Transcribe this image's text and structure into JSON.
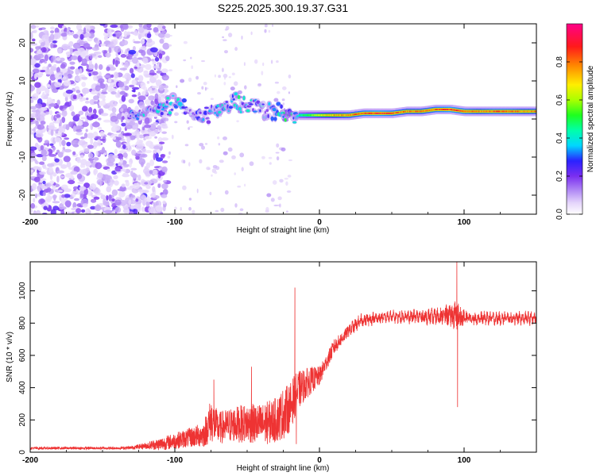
{
  "title": "S225.2025.300.19.37.G31",
  "chart_data": [
    {
      "type": "heatmap",
      "title": "S225.2025.300.19.37.G31",
      "xlabel": "Height of straight line (km)",
      "ylabel": "Frequency (Hz)",
      "xlim": [
        -200,
        150
      ],
      "ylim": [
        -25,
        25
      ],
      "xticks": [
        "-200",
        "-100",
        "0",
        "100"
      ],
      "xtick_values": [
        -200,
        -100,
        0,
        100
      ],
      "yticks": [
        "-20",
        "-10",
        "0",
        "10",
        "20"
      ],
      "ytick_values": [
        -20,
        -10,
        0,
        10,
        20
      ],
      "colorbar": {
        "label": "Normalized spectral amplitude",
        "range": [
          0.0,
          1.0
        ],
        "ticks": [
          "0.0",
          "0.2",
          "0.4",
          "0.6",
          "0.8"
        ],
        "tick_values": [
          0.0,
          0.2,
          0.4,
          0.6,
          0.8
        ]
      },
      "ridge": {
        "x": [
          -130,
          -120,
          -110,
          -100,
          -90,
          -80,
          -70,
          -60,
          -50,
          -40,
          -30,
          -20,
          -10,
          0,
          10,
          20,
          30,
          40,
          50,
          60,
          70,
          80,
          90,
          100,
          110,
          120,
          130,
          140,
          150
        ],
        "frequency": [
          1,
          2,
          3,
          4,
          2,
          1,
          2,
          5,
          4,
          3,
          2,
          1,
          1,
          1,
          1,
          1,
          1.5,
          1.5,
          1.5,
          2,
          2,
          2.5,
          2.5,
          2,
          2,
          2,
          2,
          2,
          2
        ],
        "amplitude": [
          0.3,
          0.35,
          0.35,
          0.45,
          0.3,
          0.3,
          0.35,
          0.4,
          0.4,
          0.35,
          0.4,
          0.45,
          0.55,
          0.7,
          0.8,
          0.85,
          0.9,
          0.95,
          0.9,
          0.85,
          0.85,
          0.9,
          0.95,
          0.9,
          0.85,
          0.9,
          0.9,
          0.85,
          0.85
        ]
      }
    },
    {
      "type": "line",
      "xlabel": "Height of straight line (km)",
      "ylabel": "SNR (10 * v/v)",
      "xlim": [
        -200,
        150
      ],
      "ylim": [
        0,
        1180
      ],
      "xticks": [
        "-200",
        "-100",
        "0",
        "100"
      ],
      "xtick_values": [
        -200,
        -100,
        0,
        100
      ],
      "yticks": [
        "0",
        "200",
        "400",
        "600",
        "800",
        "1000"
      ],
      "ytick_values": [
        0,
        200,
        400,
        600,
        800,
        1000
      ],
      "series": [
        {
          "name": "SNR",
          "color": "#ee3333",
          "x": [
            -200,
            -180,
            -160,
            -140,
            -130,
            -120,
            -110,
            -100,
            -90,
            -80,
            -75,
            -70,
            -60,
            -50,
            -40,
            -30,
            -25,
            -20,
            -18,
            -15,
            -10,
            -5,
            0,
            5,
            10,
            15,
            20,
            25,
            30,
            40,
            50,
            60,
            70,
            80,
            90,
            95,
            100,
            110,
            120,
            130,
            140,
            150
          ],
          "mean": [
            25,
            25,
            25,
            25,
            28,
            40,
            50,
            70,
            90,
            110,
            200,
            150,
            170,
            180,
            170,
            200,
            240,
            280,
            330,
            380,
            420,
            450,
            470,
            560,
            650,
            700,
            750,
            790,
            820,
            830,
            840,
            840,
            840,
            840,
            850,
            840,
            830,
            830,
            830,
            830,
            830,
            830
          ],
          "noise": [
            8,
            8,
            8,
            8,
            10,
            20,
            40,
            50,
            60,
            80,
            140,
            100,
            110,
            120,
            130,
            140,
            160,
            150,
            140,
            120,
            100,
            80,
            60,
            50,
            50,
            40,
            35,
            30,
            30,
            30,
            25,
            30,
            35,
            40,
            60,
            90,
            40,
            30,
            30,
            30,
            30,
            30
          ],
          "spikes": [
            {
              "x": -73,
              "value": 450
            },
            {
              "x": -47,
              "value": 530
            },
            {
              "x": -17,
              "value": 1020
            },
            {
              "x": -16,
              "value": 50
            },
            {
              "x": 95,
              "value": 1180
            },
            {
              "x": 95.5,
              "value": 280
            }
          ]
        }
      ]
    }
  ]
}
